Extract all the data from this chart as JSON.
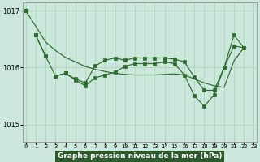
{
  "title": "Graphe pression niveau de la mer (hPa)",
  "x_labels": [
    "0",
    "1",
    "2",
    "3",
    "4",
    "5",
    "6",
    "7",
    "8",
    "9",
    "10",
    "11",
    "12",
    "13",
    "14",
    "15",
    "16",
    "17",
    "18",
    "19",
    "20",
    "21",
    "22",
    "23"
  ],
  "x_values": [
    0,
    1,
    2,
    3,
    4,
    5,
    6,
    7,
    8,
    9,
    10,
    11,
    12,
    13,
    14,
    15,
    16,
    17,
    18,
    19,
    20,
    21,
    22,
    23
  ],
  "yticks": [
    1015,
    1016,
    1017
  ],
  "ylim": [
    1014.7,
    1017.15
  ],
  "xlim": [
    -0.3,
    23.3
  ],
  "line_color": "#2d6a2d",
  "bg_color": "#cce8dc",
  "grid_color": "#b0d4c0",
  "label_bg": "#2d5a2d",
  "line_smooth": [
    1017.0,
    1016.73,
    1016.45,
    1016.3,
    1016.18,
    1016.1,
    1016.02,
    1015.97,
    1015.93,
    1015.9,
    1015.88,
    1015.87,
    1015.87,
    1015.87,
    1015.88,
    1015.89,
    1015.87,
    1015.8,
    1015.73,
    1015.68,
    1015.65,
    1016.12,
    1016.35,
    null
  ],
  "line_a": [
    null,
    1016.57,
    1016.2,
    null,
    null,
    null,
    null,
    null,
    null,
    null,
    null,
    null,
    null,
    null,
    null,
    null,
    null,
    null,
    null,
    null,
    null,
    null,
    null,
    null
  ],
  "line_b": [
    null,
    null,
    null,
    1015.85,
    1015.9,
    1015.78,
    1015.68,
    1015.82,
    1015.87,
    1015.92,
    1016.02,
    1016.07,
    1016.07,
    1016.07,
    1016.1,
    1016.07,
    1015.87,
    1015.5,
    1015.32,
    1015.52,
    1016.0,
    1016.38,
    1016.35,
    null
  ],
  "line_c": [
    null,
    1016.57,
    1016.2,
    1015.85,
    1015.9,
    1015.8,
    1015.73,
    1016.03,
    1016.13,
    1016.17,
    1016.13,
    1016.17,
    1016.17,
    1016.17,
    1016.17,
    1016.15,
    1016.1,
    1015.83,
    1015.6,
    1015.6,
    1016.0,
    1016.57,
    1016.35,
    null
  ]
}
